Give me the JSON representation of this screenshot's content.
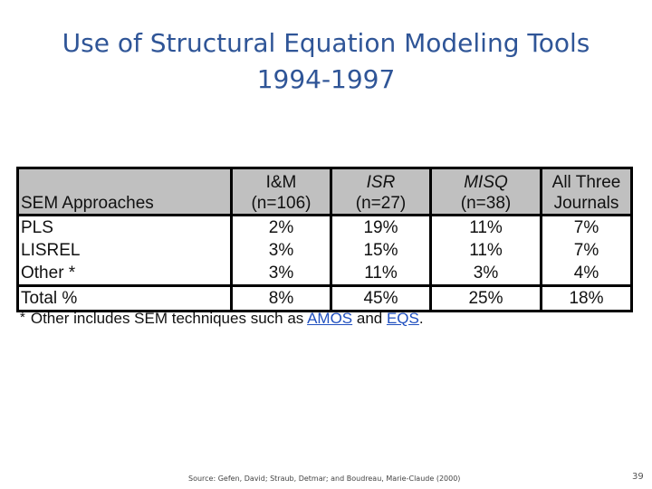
{
  "title": {
    "line1": "Use of Structural Equation Modeling Tools",
    "line2": "1994-1997"
  },
  "table": {
    "header": {
      "approaches": "SEM Approaches",
      "columns": [
        {
          "line1": "I&M",
          "line2": "(n=106)",
          "italic": false
        },
        {
          "line1": "ISR",
          "line2": "(n=27)",
          "italic": true
        },
        {
          "line1": "MISQ",
          "line2": "(n=38)",
          "italic": true
        },
        {
          "line1": "All Three",
          "line2": "Journals",
          "italic": false
        }
      ]
    },
    "rows": [
      {
        "label": "PLS",
        "values": [
          "2%",
          "19%",
          "11%",
          "7%"
        ]
      },
      {
        "label": "LISREL",
        "values": [
          "3%",
          "15%",
          "11%",
          "7%"
        ]
      },
      {
        "label": "Other *",
        "values": [
          "3%",
          "11%",
          "3%",
          "4%"
        ]
      }
    ],
    "total": {
      "label": "Total %",
      "values": [
        "8%",
        "45%",
        "25%",
        "18%"
      ]
    }
  },
  "footnote": {
    "star": "*",
    "text_before": "Other includes SEM techniques such as ",
    "link1": "AMOS",
    "middle": " and ",
    "link2": "EQS",
    "end": "."
  },
  "source": "Source: Gefen, David; Straub, Detmar; and Boudreau, Marie-Claude (2000)",
  "page_number": "39"
}
